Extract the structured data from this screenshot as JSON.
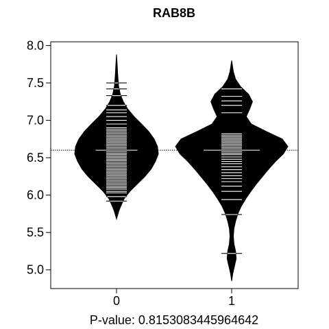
{
  "chart_data": {
    "type": "beanplot",
    "title": "RAB8B",
    "xlabel": "P-value: 0.8153083445964642",
    "ylabel": "",
    "categories": [
      "0",
      "1"
    ],
    "ylim": [
      4.75,
      8.05
    ],
    "yticks": [
      5.0,
      5.5,
      6.0,
      6.5,
      7.0,
      7.5,
      8.0
    ],
    "ytick_labels": [
      "5.0",
      "5.5",
      "6.0",
      "6.5",
      "7.0",
      "7.5",
      "8.0"
    ],
    "overall_mean": 6.6,
    "beans": [
      {
        "name": "0",
        "mean": 6.6,
        "median": 6.62,
        "range": [
          5.68,
          7.88
        ],
        "density": [
          [
            5.68,
            0.0
          ],
          [
            5.78,
            0.05
          ],
          [
            5.85,
            0.1
          ],
          [
            5.95,
            0.18
          ],
          [
            6.05,
            0.32
          ],
          [
            6.15,
            0.5
          ],
          [
            6.25,
            0.68
          ],
          [
            6.35,
            0.83
          ],
          [
            6.45,
            0.93
          ],
          [
            6.55,
            1.0
          ],
          [
            6.65,
            0.98
          ],
          [
            6.75,
            0.9
          ],
          [
            6.85,
            0.77
          ],
          [
            6.95,
            0.6
          ],
          [
            7.05,
            0.42
          ],
          [
            7.15,
            0.27
          ],
          [
            7.25,
            0.16
          ],
          [
            7.35,
            0.09
          ],
          [
            7.45,
            0.05
          ],
          [
            7.6,
            0.03
          ],
          [
            7.75,
            0.015
          ],
          [
            7.88,
            0.0
          ]
        ],
        "observations": [
          5.92,
          5.98,
          6.03,
          6.05,
          6.08,
          6.1,
          6.12,
          6.14,
          6.16,
          6.18,
          6.2,
          6.22,
          6.24,
          6.26,
          6.28,
          6.3,
          6.32,
          6.34,
          6.36,
          6.38,
          6.4,
          6.42,
          6.44,
          6.46,
          6.48,
          6.5,
          6.52,
          6.54,
          6.56,
          6.58,
          6.6,
          6.62,
          6.64,
          6.66,
          6.68,
          6.7,
          6.72,
          6.74,
          6.76,
          6.78,
          6.8,
          6.82,
          6.84,
          6.86,
          6.88,
          6.9,
          6.95,
          7.0,
          7.05,
          7.1,
          7.14,
          7.2,
          7.33,
          7.42,
          7.5
        ]
      },
      {
        "name": "1",
        "mean": 6.6,
        "median": 6.64,
        "range": [
          4.85,
          7.8
        ],
        "density": [
          [
            4.85,
            0.0
          ],
          [
            4.95,
            0.02
          ],
          [
            5.05,
            0.05
          ],
          [
            5.15,
            0.08
          ],
          [
            5.25,
            0.07
          ],
          [
            5.35,
            0.04
          ],
          [
            5.45,
            0.03
          ],
          [
            5.55,
            0.04
          ],
          [
            5.65,
            0.07
          ],
          [
            5.75,
            0.11
          ],
          [
            5.85,
            0.17
          ],
          [
            5.95,
            0.25
          ],
          [
            6.05,
            0.34
          ],
          [
            6.15,
            0.44
          ],
          [
            6.25,
            0.55
          ],
          [
            6.35,
            0.66
          ],
          [
            6.45,
            0.78
          ],
          [
            6.55,
            0.92
          ],
          [
            6.65,
            1.0
          ],
          [
            6.75,
            0.9
          ],
          [
            6.85,
            0.62
          ],
          [
            6.95,
            0.35
          ],
          [
            7.05,
            0.26
          ],
          [
            7.15,
            0.32
          ],
          [
            7.25,
            0.37
          ],
          [
            7.35,
            0.3
          ],
          [
            7.45,
            0.16
          ],
          [
            7.55,
            0.07
          ],
          [
            7.65,
            0.03
          ],
          [
            7.8,
            0.0
          ]
        ],
        "observations": [
          5.22,
          5.74,
          5.94,
          6.05,
          6.12,
          6.18,
          6.22,
          6.26,
          6.3,
          6.34,
          6.38,
          6.42,
          6.45,
          6.48,
          6.51,
          6.54,
          6.56,
          6.58,
          6.6,
          6.62,
          6.64,
          6.66,
          6.68,
          6.7,
          6.72,
          6.74,
          6.76,
          6.78,
          6.8,
          6.82,
          7.1,
          7.2,
          7.26,
          7.32,
          7.42
        ]
      }
    ],
    "grid": false,
    "legend": "none"
  }
}
